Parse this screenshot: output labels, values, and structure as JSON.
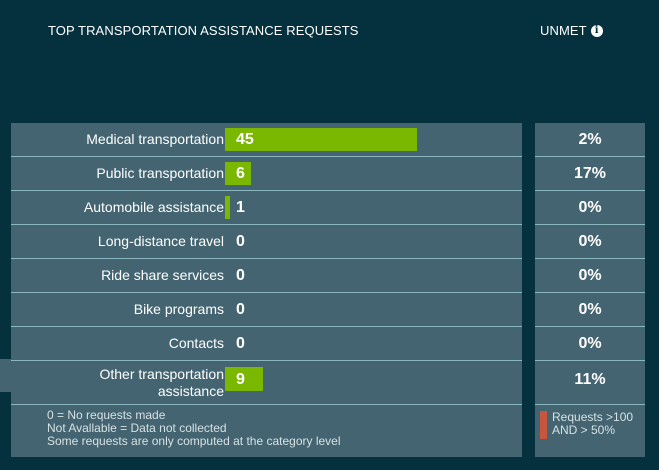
{
  "header": {
    "title": "TOP TRANSPORTATION ASSISTANCE REQUESTS",
    "unmet_label": "UNMET",
    "info_icon": "info-icon"
  },
  "rows": [
    {
      "label": "Medical transportation",
      "count": "45",
      "value": 45,
      "unmet": "2%"
    },
    {
      "label": "Public transportation",
      "count": "6",
      "value": 6,
      "unmet": "17%"
    },
    {
      "label": "Automobile assistance",
      "count": "1",
      "value": 1,
      "unmet": "0%"
    },
    {
      "label": "Long-distance travel",
      "count": "0",
      "value": 0,
      "unmet": "0%"
    },
    {
      "label": "Ride share services",
      "count": "0",
      "value": 0,
      "unmet": "0%"
    },
    {
      "label": "Bike programs",
      "count": "0",
      "value": 0,
      "unmet": "0%"
    },
    {
      "label": "Contacts",
      "count": "0",
      "value": 0,
      "unmet": "0%"
    },
    {
      "label": "Other transportation assistance",
      "count": "9",
      "value": 9,
      "unmet": "11%"
    }
  ],
  "notes": [
    "0 = No requests made",
    "Not Avallable = Data not collected",
    "Some requests are only computed at the category level"
  ],
  "legend": {
    "line1": "Requests >100",
    "line2": "AND > 50%",
    "color": "#c8553d"
  },
  "colors": {
    "background": "#04313d",
    "panel": "#436470",
    "bar": "#7ab800"
  }
}
